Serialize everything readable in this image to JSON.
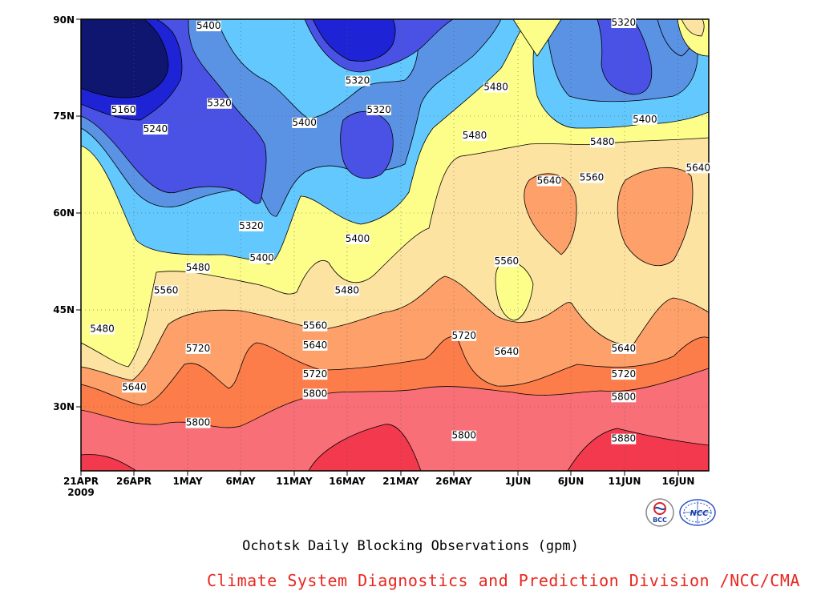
{
  "chart_data": {
    "type": "contour",
    "title": "Ochotsk Daily Blocking Observations (gpm)",
    "x_ticks": [
      "21APR",
      "26APR",
      "1MAY",
      "6MAY",
      "11MAY",
      "16MAY",
      "21MAY",
      "26MAY",
      "1JUN",
      "6JUN",
      "11JUN",
      "16JUN"
    ],
    "x_year": "2009",
    "y_ticks": [
      "30N",
      "45N",
      "60N",
      "75N",
      "90N"
    ],
    "x_range_days_from_21APR": [
      0,
      59
    ],
    "y_range_lat": [
      20,
      90
    ],
    "contour_levels": [
      5160,
      5240,
      5320,
      5400,
      5480,
      5560,
      5640,
      5720,
      5800,
      5880
    ],
    "contour_labels": [
      {
        "value": "5400",
        "x": "6MAY-3",
        "lat": 89
      },
      {
        "value": "5320",
        "x": "11JUN",
        "lat": 89.5
      },
      {
        "value": "5160",
        "x": "25APR",
        "lat": 76
      },
      {
        "value": "5240",
        "x": "28APR",
        "lat": 73
      },
      {
        "value": "5320",
        "x": "4MAY",
        "lat": 77
      },
      {
        "value": "5320",
        "x": "17MAY",
        "lat": 80.5
      },
      {
        "value": "5320",
        "x": "19MAY",
        "lat": 76
      },
      {
        "value": "5400",
        "x": "12MAY",
        "lat": 74
      },
      {
        "value": "5480",
        "x": "30MAY",
        "lat": 79.5
      },
      {
        "value": "5400",
        "x": "13JUN",
        "lat": 74.5
      },
      {
        "value": "5480",
        "x": "28MAY",
        "lat": 72
      },
      {
        "value": "5480",
        "x": "9JUN",
        "lat": 71
      },
      {
        "value": "5640",
        "x": "4JUN",
        "lat": 65
      },
      {
        "value": "5560",
        "x": "8JUN",
        "lat": 65.5
      },
      {
        "value": "5640",
        "x": "18JUN",
        "lat": 67
      },
      {
        "value": "5320",
        "x": "7MAY",
        "lat": 58
      },
      {
        "value": "5400",
        "x": "17MAY",
        "lat": 56
      },
      {
        "value": "5400",
        "x": "8MAY",
        "lat": 53
      },
      {
        "value": "5480",
        "x": "2MAY",
        "lat": 51.5
      },
      {
        "value": "5560",
        "x": "29APR",
        "lat": 48
      },
      {
        "value": "5480",
        "x": "16MAY",
        "lat": 48
      },
      {
        "value": "5560",
        "x": "31MAY",
        "lat": 52.5
      },
      {
        "value": "5480",
        "x": "23APR",
        "lat": 42
      },
      {
        "value": "5560",
        "x": "13MAY",
        "lat": 42.5
      },
      {
        "value": "5640",
        "x": "13MAY",
        "lat": 39.5
      },
      {
        "value": "5720",
        "x": "2MAY",
        "lat": 39
      },
      {
        "value": "5720",
        "x": "27MAY",
        "lat": 41
      },
      {
        "value": "5640",
        "x": "31MAY",
        "lat": 38.5
      },
      {
        "value": "5640",
        "x": "11JUN",
        "lat": 39
      },
      {
        "value": "5720",
        "x": "13MAY",
        "lat": 35
      },
      {
        "value": "5720",
        "x": "11JUN",
        "lat": 35
      },
      {
        "value": "5640",
        "x": "26APR",
        "lat": 33
      },
      {
        "value": "5800",
        "x": "13MAY",
        "lat": 32
      },
      {
        "value": "5800",
        "x": "2MAY",
        "lat": 27.5
      },
      {
        "value": "5800",
        "x": "11JUN",
        "lat": 31.5
      },
      {
        "value": "5800",
        "x": "27MAY",
        "lat": 25.5
      },
      {
        "value": "5880",
        "x": "11JUN",
        "lat": 25
      }
    ]
  },
  "footer": {
    "title": "Ochotsk Daily Blocking Observations (gpm)",
    "credit": "Climate System Diagnostics and Prediction Division /NCC/CMA",
    "logo_left_text": "BCC",
    "logo_right_text": "NCC"
  },
  "colors": {
    "5880+": "#f2394e",
    "5800-5880": "#f86f78",
    "5720-5800": "#fd7d4a",
    "5640-5720": "#fda06a",
    "5560-5640": "#fde3a1",
    "5480-5560": "#fdfd8a",
    "5400-5480": "#63c8fd",
    "5320-5400": "#5a92e4",
    "5240-5320": "#4a52e6",
    "5160-5240": "#1e23d6",
    "<5160": "#0f1670",
    "credit_red": "#e8261e"
  }
}
